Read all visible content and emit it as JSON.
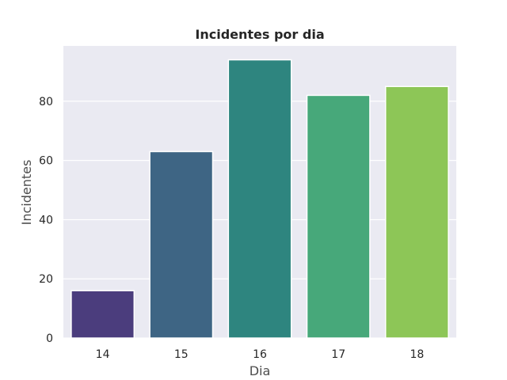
{
  "chart_data": {
    "type": "bar",
    "title": "Incidentes por dia",
    "xlabel": "Dia",
    "ylabel": "Incidentes",
    "categories": [
      "14",
      "15",
      "16",
      "17",
      "18"
    ],
    "values": [
      16,
      63,
      94,
      82,
      85
    ],
    "ylim": [
      0,
      98.7
    ],
    "yticks": [
      0,
      20,
      40,
      60,
      80
    ],
    "grid": true,
    "legend": "none",
    "colors": [
      "#482878",
      "#3e4a89",
      "#26828e",
      "#35b779",
      "#6ece58"
    ],
    "bar_colors": [
      "#4b3d7d",
      "#3e6584",
      "#2e857f",
      "#47a87a",
      "#8dc657"
    ],
    "background": "#eaeaf2",
    "gridline_color": "#ffffff"
  }
}
